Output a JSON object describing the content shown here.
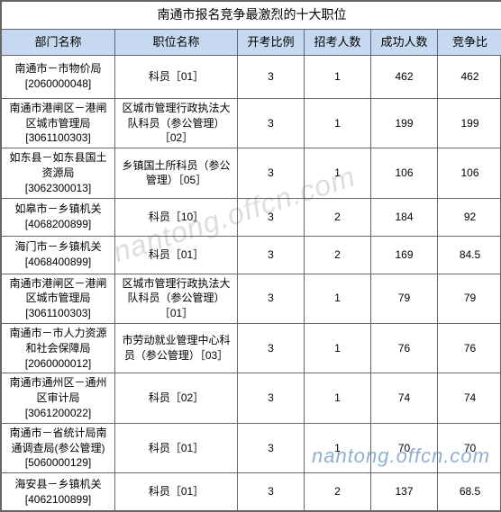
{
  "title": "南通市报名竞争最激烈的十大职位",
  "headers": {
    "dept": "部门名称",
    "position": "职位名称",
    "exam_ratio": "开考比例",
    "recruit_num": "招考人数",
    "success_num": "成功人数",
    "compete_ratio": "竞争比"
  },
  "rows": [
    {
      "dept_name": "南通市－市物价局",
      "dept_code": "[2060000048]",
      "position": "科员［01］",
      "exam_ratio": "3",
      "recruit_num": "1",
      "success_num": "462",
      "compete_ratio": "462"
    },
    {
      "dept_name": "南通市港闸区－港闸区城市管理局",
      "dept_code": "[3061100303]",
      "position": "区城市管理行政执法大队科员（参公管理）［02］",
      "exam_ratio": "3",
      "recruit_num": "1",
      "success_num": "199",
      "compete_ratio": "199"
    },
    {
      "dept_name": "如东县－如东县国土资源局",
      "dept_code": "[3062300013]",
      "position": "乡镇国土所科员（参公管理）［05］",
      "exam_ratio": "3",
      "recruit_num": "1",
      "success_num": "106",
      "compete_ratio": "106"
    },
    {
      "dept_name": "如皋市－乡镇机关",
      "dept_code": "[4068200899]",
      "position": "科员［10］",
      "exam_ratio": "3",
      "recruit_num": "2",
      "success_num": "184",
      "compete_ratio": "92"
    },
    {
      "dept_name": "海门市－乡镇机关",
      "dept_code": "[4068400899]",
      "position": "科员［01］",
      "exam_ratio": "3",
      "recruit_num": "2",
      "success_num": "169",
      "compete_ratio": "84.5"
    },
    {
      "dept_name": "南通市港闸区－港闸区城市管理局",
      "dept_code": "[3061100303]",
      "position": "区城市管理行政执法大队科员（参公管理）［01］",
      "exam_ratio": "3",
      "recruit_num": "1",
      "success_num": "79",
      "compete_ratio": "79"
    },
    {
      "dept_name": "南通市－市人力资源和社会保障局",
      "dept_code": "[2060000012]",
      "position": "市劳动就业管理中心科员（参公管理）［03］",
      "exam_ratio": "3",
      "recruit_num": "1",
      "success_num": "76",
      "compete_ratio": "76"
    },
    {
      "dept_name": "南通市通州区－通州区审计局",
      "dept_code": "[3061200022]",
      "position": "科员［02］",
      "exam_ratio": "3",
      "recruit_num": "1",
      "success_num": "74",
      "compete_ratio": "74"
    },
    {
      "dept_name": "南通市－省统计局南通调查局(参公管理)",
      "dept_code": "[5060000129]",
      "position": "科员［01］",
      "exam_ratio": "3",
      "recruit_num": "1",
      "success_num": "70",
      "compete_ratio": "70"
    },
    {
      "dept_name": "海安县－乡镇机关",
      "dept_code": "[4062100899]",
      "position": "科员［01］",
      "exam_ratio": "3",
      "recruit_num": "2",
      "success_num": "137",
      "compete_ratio": "68.5"
    }
  ],
  "watermark_center": "nantong.offcn.com",
  "watermark_bottom": "nantong.offcn.com",
  "colors": {
    "header_bg": "#c6d9f0",
    "border": "#666666",
    "text": "#000000",
    "watermark": "rgba(100,100,100,0.22)"
  }
}
